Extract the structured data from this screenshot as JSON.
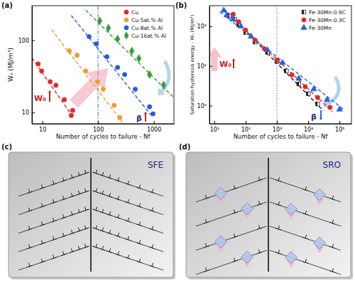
{
  "panels": [
    "(a)",
    "(b)",
    "(c)",
    "(d)"
  ],
  "chart_data": [
    {
      "type": "scatter",
      "log": true,
      "legend": "upper right",
      "x_label": "Number of cycles to failure - Nf",
      "y_label": "Wₛ (MJ/m³)",
      "xlim": [
        6.5,
        2300
      ],
      "ylim": [
        7,
        300
      ],
      "xticks": [
        10,
        100,
        1000
      ],
      "yticks": [
        10,
        100
      ],
      "reference_x": {
        "value": 100,
        "line_style": "dash-dot"
      },
      "annotations": [
        "W₀",
        "β"
      ],
      "series": [
        {
          "name": "Cu",
          "color": "#e8262a",
          "marker": "circle",
          "x": [
            8.4,
            9.7,
            13.8,
            17.5,
            24.8,
            35,
            33
          ],
          "values": [
            47,
            37.5,
            26.7,
            23.8,
            15.1,
            10.7,
            9.1
          ],
          "fit": {
            "x": [
              5.7,
              36
            ],
            "values": [
              66,
              8.5
            ],
            "line_style": "dashed"
          }
        },
        {
          "name": "Cu-5at.% Al",
          "color": "#f29b30",
          "marker": "circle",
          "x": [
            30.5,
            42,
            60,
            98,
            124,
            194,
            245
          ],
          "values": [
            71,
            62,
            37.5,
            26.7,
            21,
            12.6,
            8.5
          ],
          "fit": {
            "x": [
              14.6,
              275
            ],
            "values": [
              140,
              7.3
            ],
            "line_style": "dashed"
          }
        },
        {
          "name": "Cu-8at.% Al",
          "color": "#2a5bd7",
          "marker": "circle",
          "x": [
            69,
            93,
            144,
            224,
            300,
            465,
            840,
            970
          ],
          "values": [
            112,
            89,
            59,
            42,
            33.5,
            21,
            12,
            9.6
          ],
          "fit": {
            "x": [
              33,
              970
            ],
            "values": [
              220,
              8.5
            ],
            "line_style": "dashed"
          }
        },
        {
          "name": "Cu-16at.% Al",
          "color": "#3a9a3a",
          "marker": "diamond",
          "x": [
            107,
            153,
            224,
            403,
            540,
            840,
            1500
          ],
          "values": [
            185,
            147,
            104,
            71,
            56,
            33.5,
            24
          ],
          "fit": {
            "x": [
              60,
              2300
            ],
            "values": [
              260,
              16
            ],
            "line_style": "dashed"
          }
        }
      ]
    },
    {
      "type": "scatter",
      "log": true,
      "legend": "upper right",
      "x_label": "Number of cycles to failure - Nf",
      "y_label": "Saturation hysteresis energy - Wₛ (MJ/m³)",
      "xlim": [
        7,
        240000
      ],
      "ylim": [
        0.35,
        330
      ],
      "xticks": [
        {
          "value": 10,
          "label": "10¹"
        },
        {
          "value": 100,
          "label": "10²"
        },
        {
          "value": 1000,
          "label": "10³"
        },
        {
          "value": 10000,
          "label": "10⁴"
        },
        {
          "value": 100000,
          "label": "10⁵"
        }
      ],
      "yticks": [
        {
          "value": 1,
          "label": "10⁰"
        },
        {
          "value": 10,
          "label": "10¹"
        },
        {
          "value": 100,
          "label": "10²"
        }
      ],
      "reference_x": {
        "value": 1000,
        "line_style": "dotted"
      },
      "annotations": [
        "W₀",
        "β"
      ],
      "series": [
        {
          "name": "Fe-30Mn-0.9C",
          "color": "#1a1a1a",
          "marker": "half-square",
          "x": [
            30,
            45,
            60,
            100,
            200,
            500,
            1000,
            2000,
            5000,
            10000,
            20000
          ],
          "values": [
            180,
            150,
            110,
            70,
            40,
            22,
            13,
            7.5,
            3.5,
            2,
            1.1
          ],
          "fit": {
            "x": [
              20,
              30000
            ],
            "values": [
              280,
              0.75
            ],
            "line_style": "dashed"
          }
        },
        {
          "name": "Fe-30Mn-0.3C",
          "color": "#e02a2a",
          "marker": "circle",
          "x": [
            40,
            60,
            100,
            200,
            400,
            1000,
            3000,
            8000,
            20000,
            50000
          ],
          "values": [
            200,
            130,
            80,
            45,
            27,
            14,
            6,
            3,
            1.6,
            0.9
          ],
          "fit": {
            "x": [
              20,
              60000
            ],
            "values": [
              260,
              0.7
            ],
            "line_style": "dashed"
          }
        },
        {
          "name": "Fe-30Mn",
          "color": "#2a62e0",
          "marker": "triangle",
          "x": [
            20,
            25,
            40,
            70,
            150,
            500,
            1500,
            5000,
            15000,
            40000,
            100000
          ],
          "values": [
            250,
            190,
            150,
            100,
            55,
            25,
            12,
            4.8,
            2.6,
            1.4,
            0.8
          ],
          "fit": {
            "x": [
              15,
              150000
            ],
            "values": [
              230,
              0.75
            ],
            "line_style": "dashed"
          }
        }
      ]
    }
  ],
  "diagrams": [
    {
      "label": "SFE"
    },
    {
      "label": "SRO"
    }
  ]
}
